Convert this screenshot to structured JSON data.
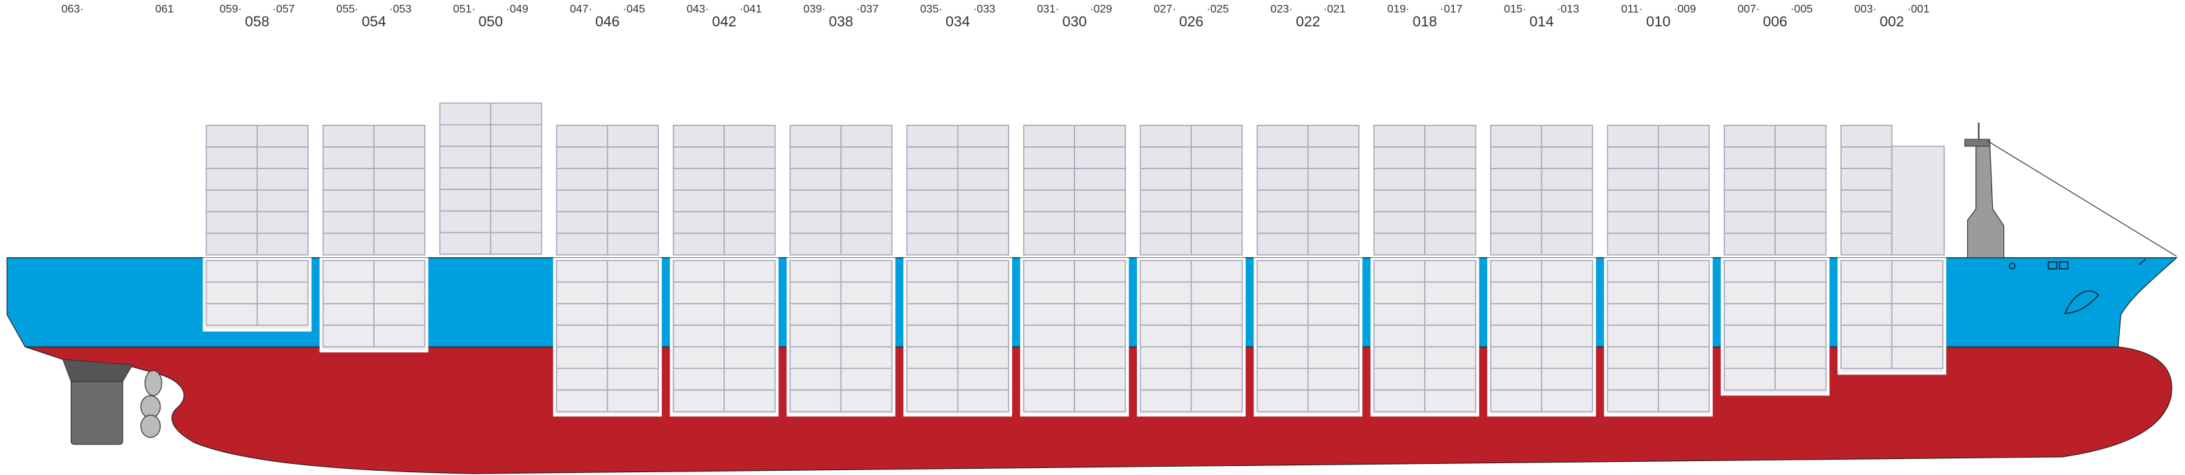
{
  "aft_labels": [
    "063·",
    "061"
  ],
  "bays": [
    {
      "left": "059·",
      "right": "·057",
      "center": "058"
    },
    {
      "left": "055·",
      "right": "·053",
      "center": "054"
    },
    {
      "left": "051·",
      "right": "·049",
      "center": "050"
    },
    {
      "left": "047·",
      "right": "·045",
      "center": "046"
    },
    {
      "left": "043·",
      "right": "·041",
      "center": "042"
    },
    {
      "left": "039·",
      "right": "·037",
      "center": "038"
    },
    {
      "left": "035·",
      "right": "·033",
      "center": "034"
    },
    {
      "left": "031·",
      "right": "·029",
      "center": "030"
    },
    {
      "left": "027·",
      "right": "·025",
      "center": "026"
    },
    {
      "left": "023·",
      "right": "·021",
      "center": "022"
    },
    {
      "left": "019·",
      "right": "·017",
      "center": "018"
    },
    {
      "left": "015·",
      "right": "·013",
      "center": "014"
    },
    {
      "left": "011·",
      "right": "·009",
      "center": "010"
    },
    {
      "left": "007·",
      "right": "·005",
      "center": "006"
    },
    {
      "left": "003·",
      "right": "·001",
      "center": "002"
    }
  ]
}
